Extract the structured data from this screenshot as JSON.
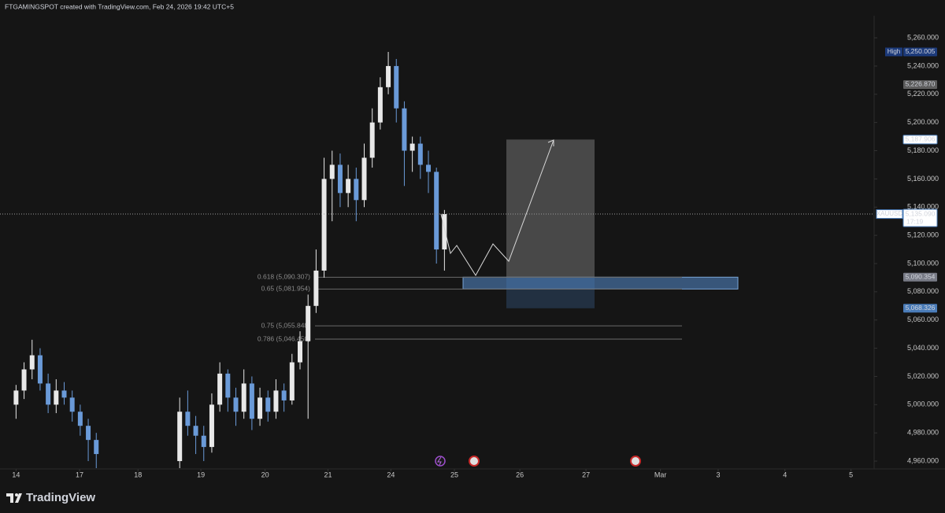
{
  "chart_data": {
    "type": "candlestick",
    "header": "FTGAMINGSPOT created with TradingView.com, Feb 24, 2026 19:42 UTC+5",
    "brand": "TradingView",
    "up_color": "#e8e8e8",
    "down_color": "#6a9ad8",
    "x": [
      0,
      0.125,
      0.25,
      0.375,
      0.5,
      0.625,
      0.75,
      0.875,
      1,
      1.125,
      1.25,
      2.55,
      2.675,
      2.8,
      2.925,
      3.05,
      3.175,
      3.3,
      3.425,
      3.55,
      3.675,
      3.8,
      3.925,
      4.05,
      4.175,
      4.3,
      4.425,
      4.55,
      4.675,
      4.8,
      4.925,
      5.05,
      5.175,
      5.3,
      5.425,
      5.55,
      5.675,
      5.8,
      5.925,
      6.05,
      6.175,
      6.3,
      6.425,
      6.55,
      6.675
    ],
    "open": [
      5000,
      5010,
      5025,
      5035,
      5015,
      5000,
      5010,
      5005,
      4995,
      4985,
      4975,
      4960,
      4995,
      4985,
      4978,
      4970,
      5000,
      5022,
      5005,
      4995,
      5015,
      4990,
      5005,
      4995,
      5010,
      5003,
      5030,
      5045,
      5070,
      5095,
      5160,
      5170,
      5150,
      5160,
      5145,
      5175,
      5200,
      5225,
      5240,
      5210,
      5180,
      5185,
      5170,
      5165,
      5110
    ],
    "high": [
      5014,
      5030,
      5046,
      5040,
      5022,
      5018,
      5016,
      5010,
      5000,
      4990,
      4980,
      5005,
      5010,
      4992,
      4985,
      5008,
      5030,
      5025,
      5012,
      5025,
      5020,
      5012,
      5010,
      5018,
      5015,
      5036,
      5052,
      5078,
      5110,
      5175,
      5180,
      5178,
      5170,
      5168,
      5185,
      5210,
      5232,
      5250.005,
      5245,
      5215,
      5190,
      5190,
      5180,
      5168,
      5138
    ],
    "low": [
      4990,
      5004,
      5018,
      5010,
      4994,
      4994,
      5000,
      4988,
      4978,
      4960,
      4955,
      4955,
      4978,
      4965,
      4960,
      4966,
      4995,
      4995,
      4985,
      4990,
      4982,
      4985,
      4988,
      4990,
      4995,
      5000,
      5025,
      4990,
      5065,
      5090,
      5130,
      5140,
      5140,
      5130,
      5140,
      5168,
      5195,
      5220,
      5200,
      5155,
      5165,
      5160,
      5150,
      5100,
      5095
    ],
    "close": [
      5010,
      5025,
      5035,
      5015,
      5000,
      5010,
      5005,
      4995,
      4985,
      4975,
      4965,
      4995,
      4985,
      4978,
      4970,
      5000,
      5022,
      5005,
      4995,
      5015,
      4990,
      5005,
      4995,
      5010,
      5003,
      5030,
      5045,
      5070,
      5095,
      5160,
      5170,
      5150,
      5160,
      5145,
      5175,
      5200,
      5225,
      5240,
      5210,
      5180,
      5185,
      5170,
      5165,
      5110,
      5135.09
    ],
    "xlim": [
      -0.25,
      13.37
    ],
    "ylim": [
      4955,
      5286.8
    ],
    "xticks": [
      {
        "value": 0,
        "label": "14"
      },
      {
        "value": 0.99,
        "label": "17"
      },
      {
        "value": 1.9,
        "label": "18"
      },
      {
        "value": 2.88,
        "label": "19"
      },
      {
        "value": 3.88,
        "label": "20"
      },
      {
        "value": 4.86,
        "label": "21"
      },
      {
        "value": 5.84,
        "label": "24"
      },
      {
        "value": 6.83,
        "label": "25"
      },
      {
        "value": 7.85,
        "label": "26"
      },
      {
        "value": 8.88,
        "label": "27"
      },
      {
        "value": 10.04,
        "label": "Mar"
      },
      {
        "value": 10.94,
        "label": "3"
      },
      {
        "value": 11.98,
        "label": "4"
      },
      {
        "value": 13.01,
        "label": "5"
      }
    ],
    "yticks": [
      {
        "value": 4960,
        "label": "4,960.000"
      },
      {
        "value": 4980,
        "label": "4,980.000"
      },
      {
        "value": 5000,
        "label": "5,000.000"
      },
      {
        "value": 5020,
        "label": "5,020.000"
      },
      {
        "value": 5040,
        "label": "5,040.000"
      },
      {
        "value": 5060,
        "label": "5,060.000"
      },
      {
        "value": 5080,
        "label": "5,080.000"
      },
      {
        "value": 5100,
        "label": "5,100.000"
      },
      {
        "value": 5120,
        "label": "5,120.000"
      },
      {
        "value": 5140,
        "label": "5,140.000"
      },
      {
        "value": 5160,
        "label": "5,160.000"
      },
      {
        "value": 5180,
        "label": "5,180.000"
      },
      {
        "value": 5200,
        "label": "5,200.000"
      },
      {
        "value": 5220,
        "label": "5,220.000"
      },
      {
        "value": 5240,
        "label": "5,240.000"
      },
      {
        "value": 5260,
        "label": "5,260.000"
      }
    ],
    "fib_levels": [
      {
        "label": "0.618 (5,090.307)",
        "value": 5090.307
      },
      {
        "label": "0.65 (5,081.954)",
        "value": 5081.954
      },
      {
        "label": "0.75 (5,055.848)",
        "value": 5055.848
      },
      {
        "label": "0.786 (5,046.450)",
        "value": 5046.45
      }
    ],
    "price_labels": [
      {
        "tag": "High",
        "value": 5250.005,
        "label": "5,250.005",
        "color": "#1c3a7a"
      },
      {
        "value": 5226.87,
        "label": "5,226.870",
        "color": "#5d5d5d"
      },
      {
        "value": 5187.906,
        "label": "5,187.906",
        "color": "#ffffff"
      },
      {
        "tag": "XAUUSD",
        "value": 5135.09,
        "label": "5,135.090",
        "countdown": "17:19",
        "color": "#ffffff"
      },
      {
        "value": 5090.354,
        "label": "5,090.354",
        "color": "#787b86"
      },
      {
        "value": 5068.326,
        "label": "5,068.326",
        "color": "#4a7cb8"
      }
    ]
  }
}
